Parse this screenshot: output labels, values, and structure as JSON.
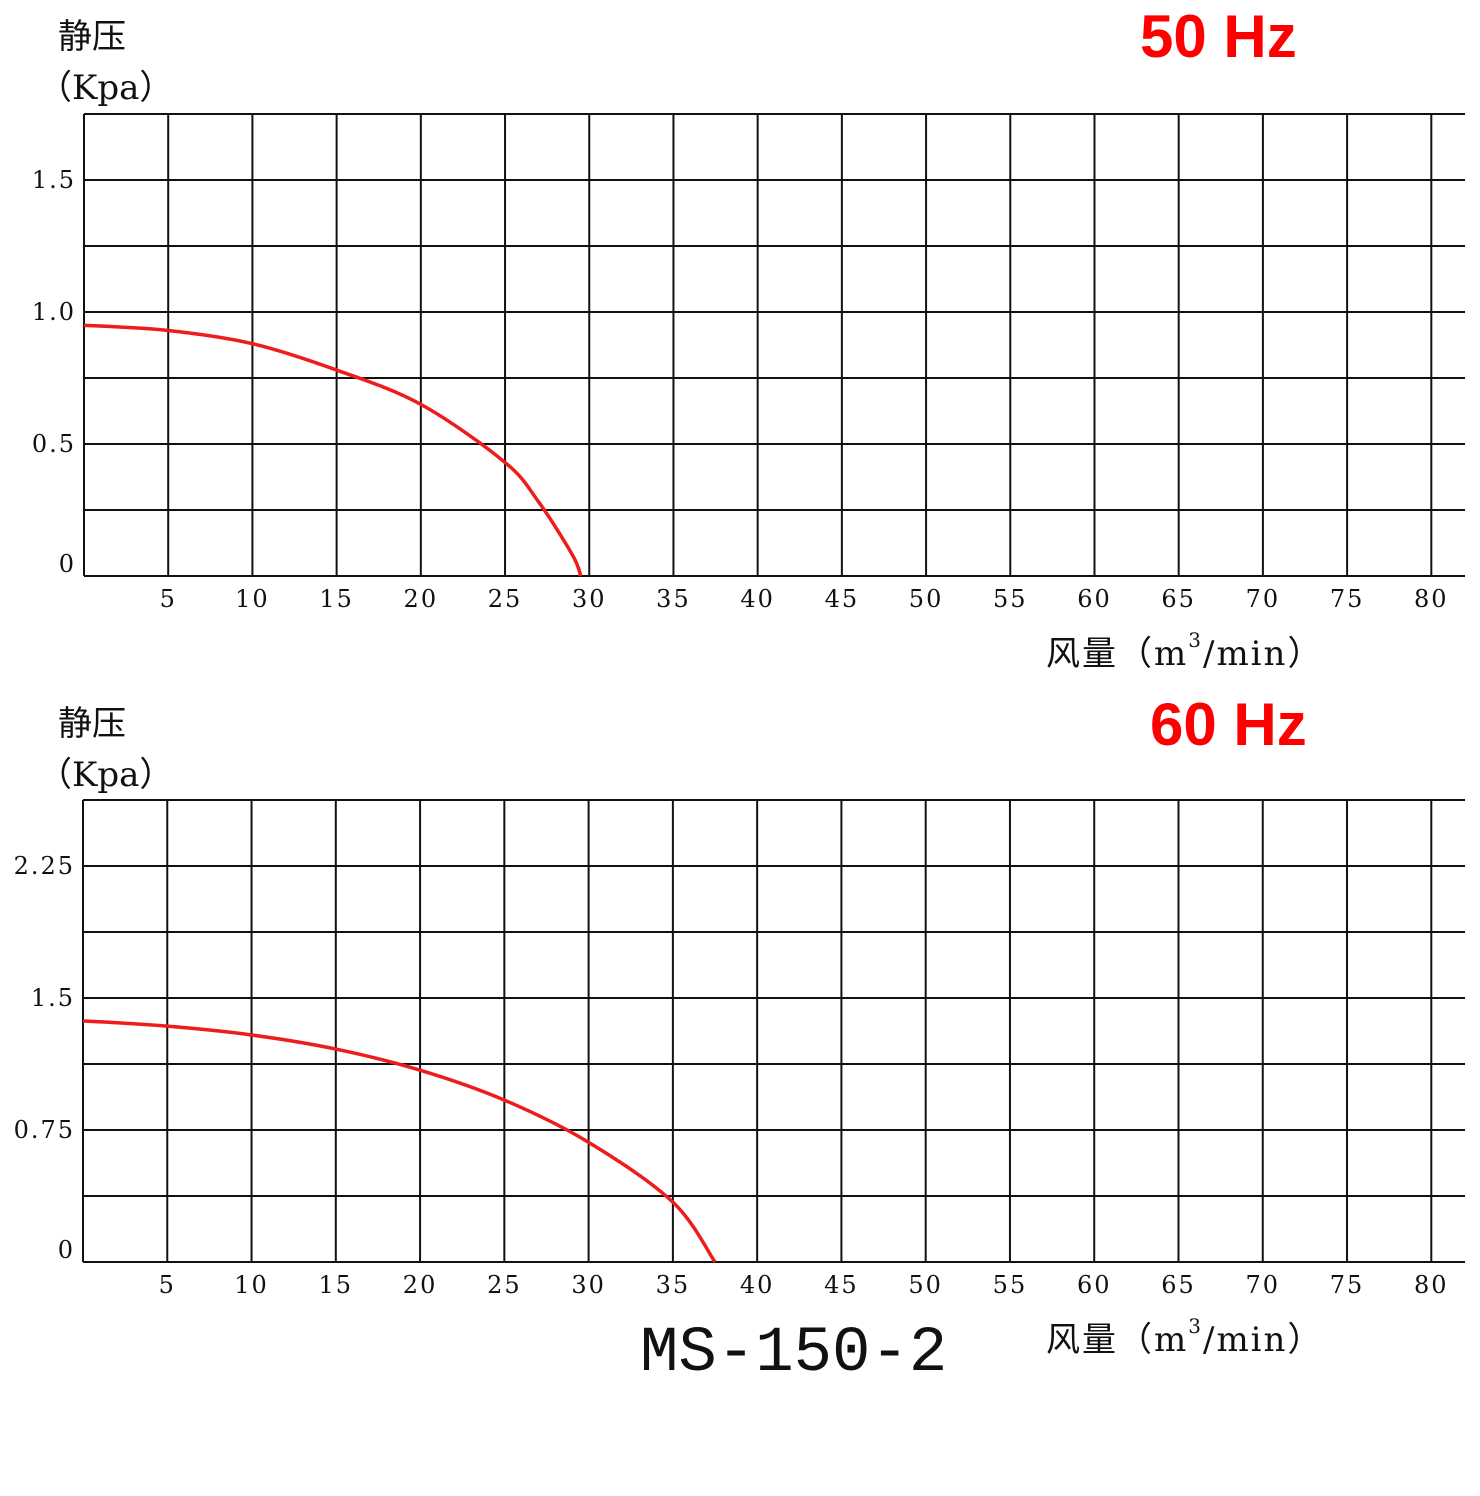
{
  "model": "MS-150-2",
  "chart_data": [
    {
      "type": "line",
      "title": "50 Hz",
      "ylabel_line1": "静压",
      "ylabel_line2": "（Kpa）",
      "xlabel_main": "风量（m",
      "xlabel_sup": "3",
      "xlabel_tail": "/min）",
      "x_ticks": [
        "5",
        "10",
        "15",
        "20",
        "25",
        "30",
        "35",
        "40",
        "45",
        "50",
        "55",
        "60",
        "65",
        "70",
        "75",
        "80"
      ],
      "y_ticks": [
        {
          "value": 0,
          "label": "0"
        },
        {
          "value": 0.5,
          "label": "0.5"
        },
        {
          "value": 1.0,
          "label": "1.0"
        },
        {
          "value": 1.5,
          "label": "1.5"
        }
      ],
      "xlim": [
        0,
        82
      ],
      "ylim": [
        0,
        1.75
      ],
      "grid": true,
      "series_color": "#ee1c1c",
      "series": [
        {
          "x": [
            0,
            5,
            10,
            15,
            20,
            25,
            27,
            29,
            29.5
          ],
          "y": [
            0.95,
            0.93,
            0.88,
            0.78,
            0.65,
            0.43,
            0.28,
            0.08,
            0
          ]
        }
      ]
    },
    {
      "type": "line",
      "title": "60 Hz",
      "ylabel_line1": "静压",
      "ylabel_line2": "（Kpa）",
      "xlabel_main": "风量（m",
      "xlabel_sup": "3",
      "xlabel_tail": "/min）",
      "x_ticks": [
        "5",
        "10",
        "15",
        "20",
        "25",
        "30",
        "35",
        "40",
        "45",
        "50",
        "55",
        "60",
        "65",
        "70",
        "75",
        "80"
      ],
      "y_ticks": [
        {
          "value": 0,
          "label": "0"
        },
        {
          "value": 0.75,
          "label": "0.75"
        },
        {
          "value": 1.5,
          "label": "1.5"
        },
        {
          "value": 2.25,
          "label": "2.25"
        }
      ],
      "xlim": [
        0,
        82
      ],
      "ylim": [
        0,
        2.625
      ],
      "grid": true,
      "series_color": "#ee1c1c",
      "series": [
        {
          "x": [
            0,
            5,
            10,
            15,
            20,
            25,
            30,
            35,
            37.5
          ],
          "y": [
            1.37,
            1.34,
            1.29,
            1.21,
            1.09,
            0.92,
            0.68,
            0.34,
            0
          ]
        }
      ]
    }
  ]
}
